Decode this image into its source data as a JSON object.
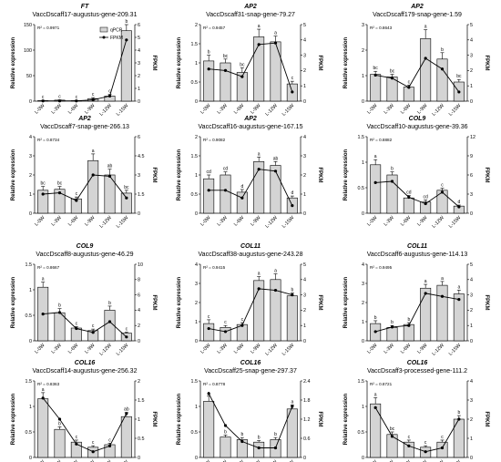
{
  "figure": {
    "categories": [
      "L-0W",
      "L-3W",
      "L-6W",
      "L-9W",
      "L-12W",
      "L-15W"
    ],
    "ylabel_left": "Relative expression",
    "ylabel_right": "FPKM",
    "legend": [
      {
        "label": "qPCR",
        "marker": "bar"
      },
      {
        "label": "FPKM",
        "marker": "line-dot"
      }
    ],
    "colors": {
      "bar": "#d4d4d4",
      "bar_edge": "#000000",
      "line": "#000000"
    }
  },
  "chart_data": [
    {
      "type": "bar",
      "title": "FT",
      "subtitle": "VaccDscaff17-augustus-gene-209.31",
      "r2": "R² = 0.9971",
      "legend": true,
      "categories": [
        "L-0W",
        "L-3W",
        "L-6W",
        "L-9W",
        "L-12W",
        "L-15W"
      ],
      "y_left": {
        "ticks": [
          0,
          50,
          100,
          150
        ],
        "max": 150
      },
      "y_right": {
        "ticks": [
          0,
          1,
          2,
          3,
          4,
          5,
          6
        ],
        "max": 6
      },
      "series": [
        {
          "name": "qPCR",
          "axis": "left",
          "values": [
            1,
            2,
            1,
            5,
            10,
            138
          ],
          "errors": [
            0.5,
            0.5,
            0.5,
            2,
            3,
            12
          ],
          "labels": [
            "c",
            "c",
            "c",
            "c",
            "c",
            "b"
          ]
        },
        {
          "name": "FPKM",
          "axis": "right",
          "values": [
            0.02,
            0.02,
            0.02,
            0.1,
            0.4,
            4.8
          ]
        }
      ]
    },
    {
      "type": "bar",
      "title": "AP2",
      "subtitle": "VaccDscaff31-snap-gene-79.27",
      "r2": "R² = 0.9457",
      "categories": [
        "L-0W",
        "L-3W",
        "L-6W",
        "L-9W",
        "L-12W",
        "L-15W"
      ],
      "y_left": {
        "ticks": [
          0.0,
          0.5,
          1.0,
          1.5,
          2.0
        ],
        "max": 2.0
      },
      "y_right": {
        "ticks": [
          0,
          1,
          2,
          3,
          4,
          5
        ],
        "max": 5
      },
      "series": [
        {
          "name": "qPCR",
          "axis": "left",
          "values": [
            1.05,
            1.0,
            0.75,
            1.68,
            1.55,
            0.45
          ],
          "errors": [
            0.15,
            0.1,
            0.12,
            0.2,
            0.15,
            0.07
          ],
          "labels": [
            "b",
            "bc",
            "bc",
            "a",
            "a",
            "c"
          ]
        },
        {
          "name": "FPKM",
          "axis": "right",
          "values": [
            2.1,
            2.0,
            1.6,
            3.7,
            3.8,
            0.6
          ]
        }
      ]
    },
    {
      "type": "bar",
      "title": "AP2",
      "subtitle": "VaccDscaff179-snap-gene-1.59",
      "r2": "R² = 0.8643",
      "categories": [
        "L-0W",
        "L-3W",
        "L-6W",
        "L-9W",
        "L-12W",
        "L-15W"
      ],
      "y_left": {
        "ticks": [
          0,
          1,
          2,
          3
        ],
        "max": 3
      },
      "y_right": {
        "ticks": [
          0,
          1,
          2,
          3,
          4,
          5
        ],
        "max": 5
      },
      "series": [
        {
          "name": "qPCR",
          "axis": "left",
          "values": [
            1.05,
            0.95,
            0.55,
            2.45,
            1.65,
            0.75
          ],
          "errors": [
            0.12,
            0.1,
            0.08,
            0.35,
            0.25,
            0.1
          ],
          "labels": [
            "bc",
            "bc",
            "c",
            "a",
            "b",
            "bc"
          ]
        },
        {
          "name": "FPKM",
          "axis": "right",
          "values": [
            1.7,
            1.5,
            0.9,
            2.8,
            2.1,
            0.6
          ]
        }
      ]
    },
    {
      "type": "bar",
      "title": "AP2",
      "subtitle": "VaccDscaff7-snap-gene-266.13",
      "r2": "R² = 0.8734",
      "categories": [
        "L-0W",
        "L-3W",
        "L-6W",
        "L-9W",
        "L-12W",
        "L-15W"
      ],
      "y_left": {
        "ticks": [
          0,
          1,
          2,
          3,
          4
        ],
        "max": 4
      },
      "y_right": {
        "ticks": [
          0.0,
          1.5,
          3.0,
          4.5,
          6.0
        ],
        "max": 6
      },
      "series": [
        {
          "name": "qPCR",
          "axis": "left",
          "values": [
            1.2,
            1.25,
            0.75,
            2.75,
            2.0,
            1.05
          ],
          "errors": [
            0.2,
            0.15,
            0.1,
            0.35,
            0.3,
            0.15
          ],
          "labels": [
            "bc",
            "bc",
            "c",
            "a",
            "ab",
            "bc"
          ]
        },
        {
          "name": "FPKM",
          "axis": "right",
          "values": [
            1.5,
            1.6,
            1.0,
            3.0,
            2.9,
            1.2
          ]
        }
      ]
    },
    {
      "type": "bar",
      "title": "AP2",
      "subtitle": "VaccDscaff16-augustus-gene-167.15",
      "r2": "R² = 0.9082",
      "categories": [
        "L-0W",
        "L-3W",
        "L-6W",
        "L-9W",
        "L-12W",
        "L-15W"
      ],
      "y_left": {
        "ticks": [
          0.0,
          0.5,
          1.0,
          1.5,
          2.0
        ],
        "max": 2.0
      },
      "y_right": {
        "ticks": [
          0,
          1,
          2,
          3,
          4
        ],
        "max": 4
      },
      "series": [
        {
          "name": "qPCR",
          "axis": "left",
          "values": [
            0.9,
            1.0,
            0.55,
            1.35,
            1.25,
            0.4
          ],
          "errors": [
            0.1,
            0.08,
            0.07,
            0.12,
            0.1,
            0.05
          ],
          "labels": [
            "cd",
            "cd",
            "d",
            "a",
            "ab",
            "d"
          ]
        },
        {
          "name": "FPKM",
          "axis": "right",
          "values": [
            1.2,
            1.2,
            0.8,
            2.3,
            2.2,
            0.4
          ]
        }
      ]
    },
    {
      "type": "bar",
      "title": "COL9",
      "subtitle": "VaccDscaff10-augustus-gene-39.36",
      "r2": "R² = 0.8882",
      "categories": [
        "L-0W",
        "L-3W",
        "L-6W",
        "L-9W",
        "L-12W",
        "L-15W"
      ],
      "y_left": {
        "ticks": [
          0.0,
          0.5,
          1.0,
          1.5
        ],
        "max": 1.5
      },
      "y_right": {
        "ticks": [
          0,
          3,
          6,
          9,
          12
        ],
        "max": 12
      },
      "series": [
        {
          "name": "qPCR",
          "axis": "left",
          "values": [
            0.95,
            0.75,
            0.3,
            0.22,
            0.45,
            0.14
          ],
          "errors": [
            0.1,
            0.06,
            0.05,
            0.04,
            0.04,
            0.02
          ],
          "labels": [
            "a",
            "b",
            "cd",
            "cd",
            "c",
            "d"
          ]
        },
        {
          "name": "FPKM",
          "axis": "right",
          "values": [
            4.8,
            5.0,
            2.5,
            1.5,
            3.3,
            1.0
          ]
        }
      ]
    },
    {
      "type": "bar",
      "title": "COL9",
      "subtitle": "VaccDscaff8-augustus-gene-46.29",
      "r2": "R² = 0.8667",
      "categories": [
        "L-0W",
        "L-3W",
        "L-6W",
        "L-9W",
        "L-12W",
        "L-15W"
      ],
      "y_left": {
        "ticks": [
          0.0,
          0.5,
          1.0,
          1.5
        ],
        "max": 1.5
      },
      "y_right": {
        "ticks": [
          0,
          2,
          4,
          6,
          8,
          10
        ],
        "max": 10
      },
      "series": [
        {
          "name": "qPCR",
          "axis": "left",
          "values": [
            1.05,
            0.55,
            0.25,
            0.2,
            0.6,
            0.15
          ],
          "errors": [
            0.1,
            0.08,
            0.03,
            0.03,
            0.08,
            0.02
          ],
          "labels": [
            "a",
            "b",
            "c",
            "c",
            "b",
            "c"
          ]
        },
        {
          "name": "FPKM",
          "axis": "right",
          "values": [
            3.5,
            3.7,
            1.6,
            1.1,
            2.5,
            0.5
          ]
        }
      ]
    },
    {
      "type": "bar",
      "title": "COL11",
      "subtitle": "VaccDscaff38-augustus-gene-243.28",
      "r2": "R² = 0.9415",
      "categories": [
        "L-0W",
        "L-3W",
        "L-6W",
        "L-9W",
        "L-12W",
        "L-15W"
      ],
      "y_left": {
        "ticks": [
          0,
          1,
          2,
          3,
          4
        ],
        "max": 4
      },
      "y_right": {
        "ticks": [
          0,
          1,
          2,
          3,
          4,
          5
        ],
        "max": 5
      },
      "series": [
        {
          "name": "qPCR",
          "axis": "left",
          "values": [
            0.9,
            0.7,
            0.85,
            3.15,
            3.2,
            2.35
          ],
          "errors": [
            0.2,
            0.1,
            0.1,
            0.2,
            0.3,
            0.15
          ],
          "labels": [
            "c",
            "c",
            "c",
            "a",
            "a",
            "b"
          ]
        },
        {
          "name": "FPKM",
          "axis": "right",
          "values": [
            0.8,
            0.6,
            1.0,
            3.4,
            3.3,
            3.0
          ]
        }
      ]
    },
    {
      "type": "bar",
      "title": "COL11",
      "subtitle": "VaccDscaff6-augustus-gene-114.13",
      "r2": "R² = 0.9495",
      "categories": [
        "L-0W",
        "L-3W",
        "L-6W",
        "L-9W",
        "L-12W",
        "L-15W"
      ],
      "y_left": {
        "ticks": [
          0,
          1,
          2,
          3,
          4
        ],
        "max": 4
      },
      "y_right": {
        "ticks": [
          0,
          1,
          2,
          3,
          4,
          5
        ],
        "max": 5
      },
      "series": [
        {
          "name": "qPCR",
          "axis": "left",
          "values": [
            0.9,
            0.7,
            0.85,
            2.75,
            2.9,
            2.45
          ],
          "errors": [
            0.15,
            0.1,
            0.1,
            0.2,
            0.2,
            0.2
          ],
          "labels": [
            "b",
            "b",
            "b",
            "a",
            "a",
            "a"
          ]
        },
        {
          "name": "FPKM",
          "axis": "right",
          "values": [
            0.6,
            0.9,
            1.0,
            3.1,
            2.9,
            2.7
          ]
        }
      ]
    },
    {
      "type": "bar",
      "title": "COL16",
      "subtitle": "VaccDscaff14-augustus-gene-256.32",
      "r2": "R² = 0.8363",
      "categories": [
        "L-0W",
        "L-3W",
        "L-6W",
        "L-9W",
        "L-12W",
        "L-15W"
      ],
      "y_left": {
        "ticks": [
          0.0,
          0.5,
          1.0,
          1.5
        ],
        "max": 1.5
      },
      "y_right": {
        "ticks": [
          0.0,
          0.5,
          1.0,
          1.5,
          2.0
        ],
        "max": 2.0
      },
      "series": [
        {
          "name": "qPCR",
          "axis": "left",
          "values": [
            1.15,
            0.55,
            0.3,
            0.2,
            0.25,
            0.8
          ],
          "errors": [
            0.12,
            0.05,
            0.04,
            0.03,
            0.03,
            0.08
          ],
          "labels": [
            "a",
            "b",
            "c",
            "c",
            "c",
            "ab"
          ]
        },
        {
          "name": "FPKM",
          "axis": "right",
          "values": [
            1.55,
            1.0,
            0.35,
            0.15,
            0.3,
            1.15
          ]
        }
      ]
    },
    {
      "type": "bar",
      "title": "COL16",
      "subtitle": "VaccDscaff25-snap-gene-297.37",
      "r2": "R² = 0.8778",
      "categories": [
        "L-0W",
        "L-3W",
        "L-6W",
        "L-9W",
        "L-12W",
        "L-15W"
      ],
      "y_left": {
        "ticks": [
          0.0,
          0.5,
          1.0,
          1.5
        ],
        "max": 1.5
      },
      "y_right": {
        "ticks": [
          0.0,
          0.6,
          1.2,
          1.8,
          2.4
        ],
        "max": 2.4
      },
      "series": [
        {
          "name": "qPCR",
          "axis": "left",
          "values": [
            1.1,
            0.4,
            0.35,
            0.3,
            0.35,
            0.95
          ],
          "errors": [
            0.1,
            0.04,
            0.04,
            0.03,
            0.04,
            0.08
          ],
          "labels": [
            "a",
            "b",
            "b",
            "b",
            "b",
            "a"
          ]
        },
        {
          "name": "FPKM",
          "axis": "right",
          "values": [
            2.0,
            1.0,
            0.5,
            0.3,
            0.3,
            1.6
          ]
        }
      ]
    },
    {
      "type": "bar",
      "title": "COL16",
      "subtitle": "VaccDscaff3-processed-gene-111.2",
      "r2": "R² = 0.8721",
      "categories": [
        "L-0W",
        "L-3W",
        "L-6W",
        "L-9W",
        "L-12W",
        "L-15W"
      ],
      "y_left": {
        "ticks": [
          0.0,
          0.5,
          1.0,
          1.5
        ],
        "max": 1.5
      },
      "y_right": {
        "ticks": [
          0,
          1,
          2,
          3,
          4
        ],
        "max": 4
      },
      "series": [
        {
          "name": "qPCR",
          "axis": "left",
          "values": [
            1.05,
            0.45,
            0.3,
            0.2,
            0.3,
            0.75
          ],
          "errors": [
            0.12,
            0.05,
            0.04,
            0.03,
            0.04,
            0.07
          ],
          "labels": [
            "a",
            "bc",
            "c",
            "c",
            "c",
            "b"
          ]
        },
        {
          "name": "FPKM",
          "axis": "right",
          "values": [
            2.6,
            1.1,
            0.6,
            0.3,
            0.5,
            2.0
          ]
        }
      ]
    }
  ]
}
